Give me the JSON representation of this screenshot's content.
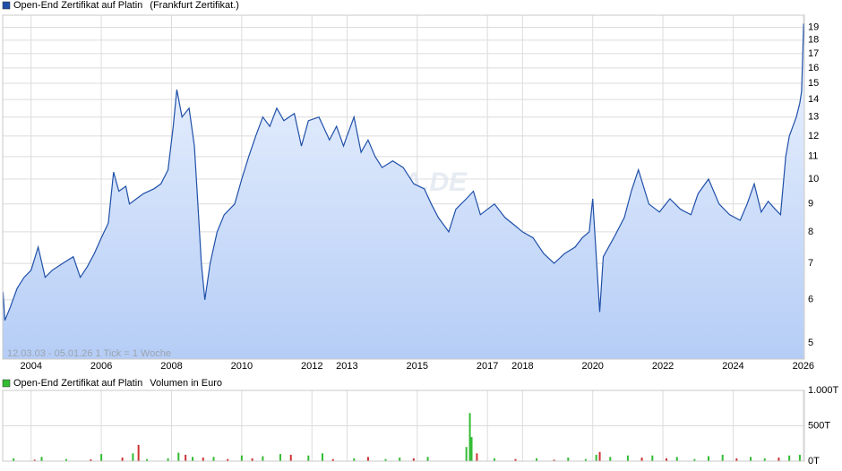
{
  "chart_data": [
    {
      "type": "line",
      "log_scale": true,
      "grid": true,
      "range_label": "12.03.03 - 05.01.26   1 Tick = 1 Woche",
      "watermark": "ARIVA.DE",
      "xlim": [
        2003.19,
        2026.03
      ],
      "xticks": [
        2004,
        2006,
        2008,
        2010,
        2012,
        2013,
        2015,
        2017,
        2018,
        2020,
        2022,
        2024,
        2026
      ],
      "ylim": [
        4.67,
        20
      ],
      "yticks": [
        5,
        6,
        7,
        8,
        9,
        10,
        11,
        12,
        13,
        14,
        15,
        16,
        17,
        18,
        19
      ],
      "x": [
        2003.2,
        2003.25,
        2003.4,
        2003.6,
        2003.8,
        2004.0,
        2004.2,
        2004.4,
        2004.6,
        2004.9,
        2005.2,
        2005.4,
        2005.6,
        2005.8,
        2006.0,
        2006.2,
        2006.35,
        2006.5,
        2006.7,
        2006.8,
        2007.0,
        2007.2,
        2007.5,
        2007.7,
        2007.9,
        2008.05,
        2008.15,
        2008.3,
        2008.5,
        2008.65,
        2008.75,
        2008.85,
        2008.95,
        2009.1,
        2009.3,
        2009.5,
        2009.8,
        2010.0,
        2010.2,
        2010.4,
        2010.6,
        2010.8,
        2011.0,
        2011.2,
        2011.5,
        2011.7,
        2011.9,
        2012.2,
        2012.5,
        2012.7,
        2012.9,
        2013.0,
        2013.2,
        2013.4,
        2013.6,
        2013.8,
        2014.0,
        2014.3,
        2014.6,
        2014.9,
        2015.2,
        2015.4,
        2015.6,
        2015.9,
        2016.1,
        2016.4,
        2016.6,
        2016.8,
        2017.0,
        2017.2,
        2017.5,
        2017.8,
        2018.0,
        2018.3,
        2018.6,
        2018.9,
        2019.2,
        2019.5,
        2019.7,
        2019.9,
        2020.0,
        2020.2,
        2020.3,
        2020.6,
        2020.9,
        2021.1,
        2021.3,
        2021.6,
        2021.9,
        2022.2,
        2022.5,
        2022.8,
        2023.0,
        2023.3,
        2023.6,
        2023.9,
        2024.2,
        2024.4,
        2024.6,
        2024.8,
        2025.0,
        2025.2,
        2025.35,
        2025.5,
        2025.6,
        2025.8,
        2025.9,
        2025.95,
        2026.01
      ],
      "series": [
        {
          "name": "Open-End Zertifikat auf Platin",
          "source": "(Frankfurt Zertifikat.)",
          "color": "#1f4fa8",
          "values": [
            6.2,
            5.5,
            5.8,
            6.3,
            6.6,
            6.8,
            7.5,
            6.6,
            6.8,
            7.0,
            7.2,
            6.6,
            6.9,
            7.3,
            7.8,
            8.3,
            10.3,
            9.5,
            9.7,
            9.0,
            9.2,
            9.4,
            9.6,
            9.8,
            10.4,
            12.5,
            14.6,
            13.0,
            13.5,
            11.5,
            9.0,
            7.0,
            6.0,
            7.0,
            8.0,
            8.6,
            9.0,
            10.0,
            11.0,
            12.0,
            13.0,
            12.5,
            13.5,
            12.8,
            13.2,
            11.5,
            12.8,
            13.0,
            11.8,
            12.5,
            11.5,
            12.0,
            13.0,
            11.2,
            11.8,
            11.0,
            10.5,
            10.8,
            10.5,
            9.8,
            9.6,
            9.0,
            8.5,
            8.0,
            8.8,
            9.2,
            9.5,
            8.6,
            8.8,
            9.0,
            8.5,
            8.2,
            8.0,
            7.8,
            7.3,
            7.0,
            7.3,
            7.5,
            7.8,
            8.0,
            9.2,
            5.7,
            7.2,
            7.8,
            8.5,
            9.5,
            10.4,
            9.0,
            8.7,
            9.2,
            8.8,
            8.6,
            9.4,
            10.0,
            9.0,
            8.6,
            8.4,
            9.0,
            9.8,
            8.7,
            9.1,
            8.8,
            8.6,
            11.0,
            12.0,
            13.0,
            13.8,
            14.5,
            19.3
          ]
        }
      ]
    },
    {
      "type": "bar",
      "grid": true,
      "xlim": [
        2003.19,
        2026.03
      ],
      "xticks": [
        2004,
        2006,
        2008,
        2010,
        2012,
        2013,
        2015,
        2017,
        2018,
        2020,
        2022,
        2024,
        2026
      ],
      "ylim": [
        0,
        1000
      ],
      "yticks": [
        {
          "value": 0,
          "label": "0T"
        },
        {
          "value": 500,
          "label": "500T"
        },
        {
          "value": 1000,
          "label": "1.000T"
        }
      ],
      "x": [
        2003.5,
        2004.1,
        2004.3,
        2005.0,
        2005.7,
        2006.0,
        2006.6,
        2006.9,
        2007.06,
        2007.3,
        2007.9,
        2008.2,
        2008.4,
        2008.6,
        2008.9,
        2009.2,
        2009.6,
        2010.0,
        2010.3,
        2010.6,
        2011.1,
        2011.4,
        2011.9,
        2012.3,
        2012.6,
        2013.2,
        2013.6,
        2014.1,
        2014.5,
        2014.9,
        2015.3,
        2016.4,
        2016.5,
        2016.55,
        2016.7,
        2017.2,
        2017.8,
        2018.4,
        2018.9,
        2019.3,
        2019.8,
        2020.1,
        2020.2,
        2020.5,
        2021.0,
        2021.4,
        2021.7,
        2022.1,
        2022.4,
        2022.9,
        2023.3,
        2023.7,
        2024.1,
        2024.5,
        2024.9,
        2025.3,
        2025.6,
        2025.9
      ],
      "series": [
        {
          "name": "Open-End Zertifikat auf Platin",
          "unit_label": "Volumen in Euro",
          "color": "#33bb33",
          "values": [
            40,
            20,
            60,
            30,
            25,
            100,
            50,
            110,
            230,
            30,
            40,
            120,
            90,
            60,
            50,
            60,
            30,
            80,
            40,
            70,
            100,
            90,
            80,
            110,
            30,
            40,
            60,
            30,
            50,
            40,
            60,
            200,
            680,
            340,
            110,
            40,
            30,
            40,
            20,
            50,
            30,
            90,
            130,
            60,
            80,
            50,
            80,
            40,
            60,
            30,
            70,
            90,
            40,
            60,
            40,
            50,
            80,
            90
          ],
          "colors": [
            "#33bb33",
            "#cc3333",
            "#33bb33",
            "#33bb33",
            "#cc3333",
            "#33bb33",
            "#cc3333",
            "#33bb33",
            "#cc3333",
            "#33bb33",
            "#33bb33",
            "#33bb33",
            "#cc3333",
            "#33bb33",
            "#cc3333",
            "#33bb33",
            "#cc3333",
            "#33bb33",
            "#cc3333",
            "#33bb33",
            "#33bb33",
            "#cc3333",
            "#33bb33",
            "#33bb33",
            "#cc3333",
            "#33bb33",
            "#cc3333",
            "#33bb33",
            "#33bb33",
            "#cc3333",
            "#33bb33",
            "#33bb33",
            "#33bb33",
            "#33bb33",
            "#cc3333",
            "#33bb33",
            "#cc3333",
            "#33bb33",
            "#cc3333",
            "#33bb33",
            "#33bb33",
            "#33bb33",
            "#cc3333",
            "#33bb33",
            "#33bb33",
            "#cc3333",
            "#33bb33",
            "#cc3333",
            "#33bb33",
            "#33bb33",
            "#33bb33",
            "#33bb33",
            "#cc3333",
            "#33bb33",
            "#33bb33",
            "#cc3333",
            "#33bb33",
            "#33bb33"
          ]
        }
      ]
    }
  ]
}
